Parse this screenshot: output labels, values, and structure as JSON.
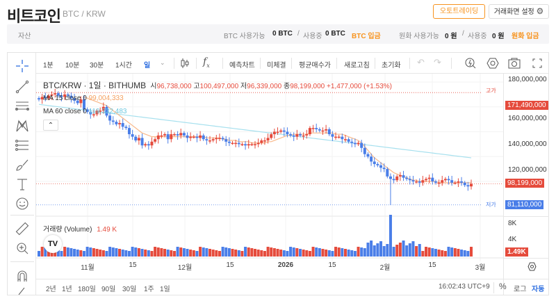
{
  "header": {
    "title": "비트코인",
    "pair": "BTC / KRW",
    "auto_trading_label": "오토트레이딩",
    "screen_settings_label": "거래화면 설정"
  },
  "asset_bar": {
    "label": "자산",
    "btc_available_label": "BTC 사용가능",
    "btc_available_value": "0 BTC",
    "slash": "/",
    "btc_in_use_label": "사용중",
    "btc_in_use_value": "0 BTC",
    "btc_deposit_label": "BTC 입금",
    "krw_available_label": "원화 사용가능",
    "krw_available_value": "0 원",
    "krw_in_use_label": "사용중",
    "krw_in_use_value": "0 원",
    "krw_deposit_label": "원화 입금"
  },
  "toolbar": {
    "intervals": [
      "1분",
      "10분",
      "30분",
      "1시간",
      "일"
    ],
    "active_interval": "일",
    "buttons": [
      "예측차트",
      "미체결",
      "평균매수가",
      "새로고침",
      "초기화"
    ]
  },
  "legend": {
    "symbol_line": "BTC/KRW · 1일 · BITHUMB",
    "open_label": "시",
    "open": "96,738,000",
    "high_label": "고",
    "high": "100,497,000",
    "low_label": "저",
    "low": "96,339,000",
    "close_label": "종",
    "close": "98,199,000",
    "change": "+1,477,000 (+1.53%)",
    "ma15_label": "MA 15 close 0",
    "ma15_value": "99,004,333",
    "ma60_label": "MA 60 close 0",
    "ma60_value": "119,332,483",
    "volume_label": "거래량 (Volume)",
    "volume_value": "1.49 K"
  },
  "price_axis": {
    "ticks": [
      "180,000,000",
      "160,000,000",
      "140,000,000",
      "120,000,000"
    ],
    "high_marker_label": "고가",
    "high_marker": "171,490,000",
    "current_price": "98,199,000",
    "low_marker_label": "저가",
    "low_marker": "81,110,000"
  },
  "volume_axis": {
    "ticks": [
      "8K",
      "4K"
    ],
    "current": "1.49K"
  },
  "time_axis": {
    "labels": [
      {
        "text": "11월",
        "x": 125
      },
      {
        "text": "15",
        "x": 190
      },
      {
        "text": "12월",
        "x": 265
      },
      {
        "text": "15",
        "x": 330
      },
      {
        "text": "2026",
        "x": 410
      },
      {
        "text": "15",
        "x": 477
      },
      {
        "text": "2월",
        "x": 553
      },
      {
        "text": "15",
        "x": 621
      },
      {
        "text": "3월",
        "x": 690
      }
    ]
  },
  "range_buttons": [
    "2년",
    "1년",
    "180일",
    "90일",
    "30일",
    "1주",
    "1일"
  ],
  "footer": {
    "time": "16:02:43 UTC+9",
    "percent": "%",
    "log": "로그",
    "auto": "자동"
  },
  "colors": {
    "up": "#e54b3c",
    "down": "#4a7ee8",
    "ma15": "#f9b98a",
    "ma60": "#a6e0ee",
    "accent": "#f7931e",
    "active": "#2f6fe0"
  },
  "chart_data": {
    "type": "candlestick",
    "title": "BTC/KRW · 1일 · BITHUMB",
    "ylabel": "KRW",
    "ylim": [
      75000000,
      185000000
    ],
    "x_labels": [
      "11월",
      "15",
      "12월",
      "15",
      "2026",
      "15",
      "2월",
      "15",
      "3월"
    ],
    "close": [
      166,
      168,
      167,
      169,
      170,
      171,
      169,
      168,
      170,
      169,
      167,
      165,
      163,
      166,
      158,
      156,
      154,
      154,
      157,
      157,
      160,
      153,
      149,
      148,
      146,
      147,
      144,
      143,
      138,
      136,
      133,
      135,
      129,
      130,
      129,
      132,
      134,
      137,
      137,
      138,
      134,
      138,
      138,
      137,
      139,
      137,
      135,
      136,
      136,
      135,
      137,
      134,
      133,
      133,
      134,
      135,
      135,
      134,
      132,
      131,
      131,
      131,
      130,
      130,
      129,
      130,
      130,
      130,
      131,
      133,
      133,
      135,
      138,
      140,
      140,
      141,
      140,
      138,
      137,
      136,
      138,
      137,
      137,
      138,
      143,
      143,
      142,
      141,
      141,
      142,
      138,
      136,
      136,
      136,
      134,
      134,
      132,
      131,
      130,
      131,
      127,
      122,
      120,
      116,
      114,
      113,
      111,
      110,
      104,
      102,
      101,
      104,
      105,
      103,
      102,
      101,
      100,
      100,
      99,
      101,
      102,
      103,
      100,
      99,
      99,
      101,
      102,
      101,
      99,
      99,
      100,
      99,
      97,
      96,
      98
    ],
    "ma15": [
      null,
      null,
      null,
      null,
      null,
      null,
      null,
      null,
      null,
      null,
      null,
      null,
      null,
      null,
      168,
      167,
      166,
      165,
      164,
      163,
      162,
      161,
      159,
      157,
      155,
      153,
      151,
      149,
      147,
      145,
      143,
      141,
      139,
      138,
      137,
      136,
      136,
      136,
      136,
      136,
      136,
      136,
      136,
      136,
      136,
      136,
      136,
      136,
      136,
      136,
      136,
      136,
      135,
      135,
      135,
      135,
      135,
      134,
      134,
      133,
      133,
      133,
      132,
      132,
      132,
      132,
      131,
      131,
      131,
      131,
      131,
      132,
      132,
      133,
      134,
      135,
      136,
      137,
      137,
      138,
      138,
      138,
      138,
      138,
      139,
      139,
      139,
      139,
      139,
      139,
      139,
      139,
      138,
      138,
      138,
      137,
      136,
      135,
      134,
      133,
      131,
      128,
      125,
      122,
      119,
      117,
      115,
      113,
      111,
      109,
      107,
      106,
      105,
      104,
      103,
      102,
      101,
      101,
      100,
      100,
      100,
      100,
      100,
      100,
      99,
      99,
      99,
      99,
      99,
      99,
      99,
      99,
      99,
      99,
      99
    ],
    "ma60_approx": "declining from ~160M to ~119.3M",
    "high_marker": 171490000,
    "low_marker": 81110000,
    "current_close": 98199000,
    "volume_last": "1.49K",
    "volume_ylim": [
      0,
      9000
    ]
  }
}
